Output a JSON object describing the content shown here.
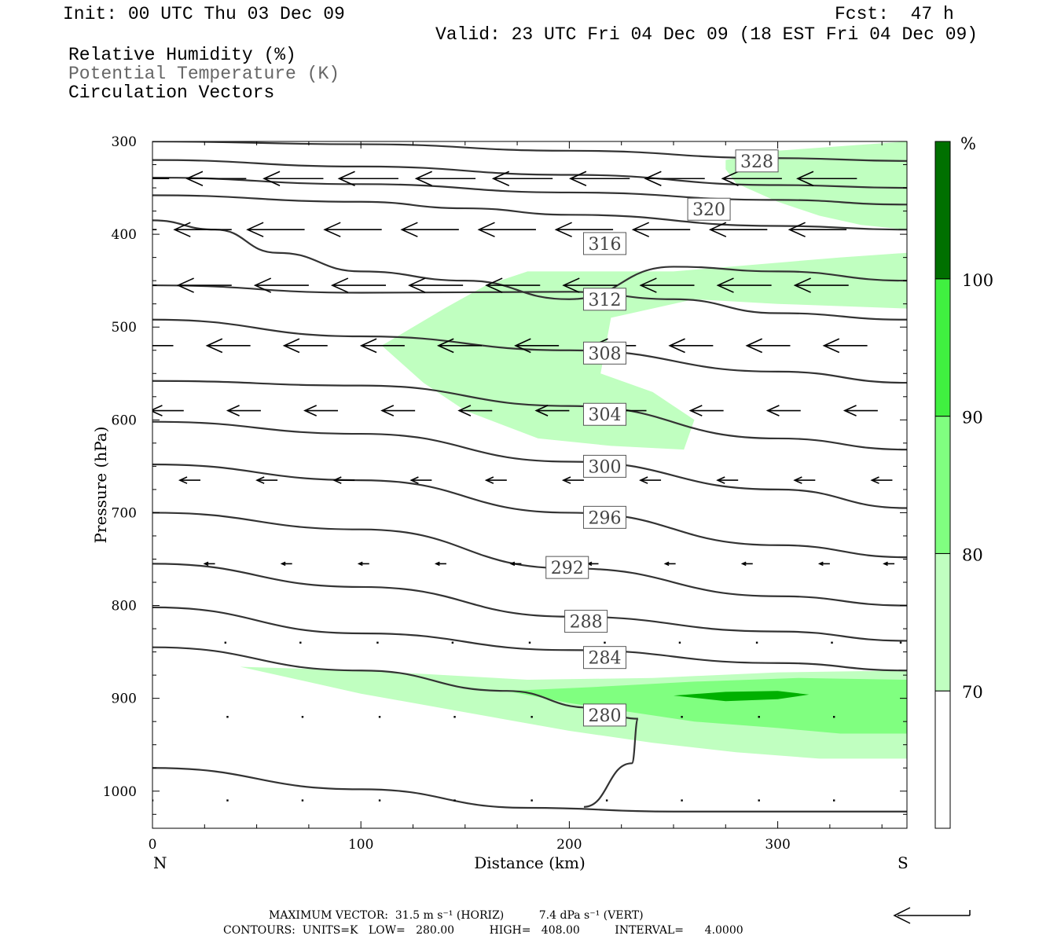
{
  "header": {
    "init": "Init: 00 UTC Thu 03 Dec 09",
    "fcst": "Fcst:  47 h",
    "valid": "Valid: 23 UTC Fri 04 Dec 09 (18 EST Fri 04 Dec 09)",
    "fields": [
      "Relative Humidity (%)",
      "Potential Temperature (K)",
      "Circulation Vectors"
    ]
  },
  "colors": {
    "rh70": "#c0ffc0",
    "rh80": "#80ff80",
    "rh90": "#40f040",
    "rh100": "#00b000",
    "rh_top": "#007000",
    "contour": "#333333",
    "potential_temp_text": "#666666"
  },
  "footer": {
    "max_vector": "MAXIMUM VECTOR:  31.5 m s⁻¹ (HORIZ)          7.4 dPa s⁻¹ (VERT)",
    "contours": "CONTOURS:  UNITS=K   LOW=   280.00          HIGH=   408.00          INTERVAL=      4.0000"
  },
  "chart_data": {
    "type": "contour",
    "xlabel": "Distance (km)",
    "ylabel": "Pressure (hPa)",
    "xlim": [
      0,
      362
    ],
    "ylim": [
      300,
      1040
    ],
    "x_ticks": [
      0,
      100,
      200,
      300
    ],
    "y_ticks": [
      300,
      400,
      500,
      600,
      700,
      800,
      900,
      1000
    ],
    "left_end": "N",
    "right_end": "S",
    "legend_unit": "%",
    "legend_levels": [
      70,
      80,
      90,
      100
    ],
    "theta_contours": [
      {
        "label": "328",
        "label_x": 290,
        "label_p": 321,
        "points": [
          [
            0,
            300
          ],
          [
            100,
            303
          ],
          [
            200,
            310
          ],
          [
            300,
            318
          ],
          [
            362,
            321
          ]
        ]
      },
      {
        "label": "",
        "points": [
          [
            0,
            320
          ],
          [
            100,
            327
          ],
          [
            200,
            336
          ],
          [
            300,
            347
          ],
          [
            362,
            350
          ]
        ]
      },
      {
        "label": "",
        "points": [
          [
            0,
            339
          ],
          [
            100,
            346
          ],
          [
            200,
            355
          ],
          [
            300,
            363
          ],
          [
            362,
            368
          ]
        ]
      },
      {
        "label": "320",
        "label_x": 267,
        "label_p": 373,
        "points": [
          [
            0,
            358
          ],
          [
            100,
            365
          ],
          [
            150,
            372
          ],
          [
            200,
            379
          ],
          [
            300,
            391
          ],
          [
            362,
            395
          ]
        ]
      },
      {
        "label": "316",
        "label_x": 217,
        "label_p": 410,
        "points": [
          [
            0,
            385
          ],
          [
            30,
            395
          ],
          [
            60,
            420
          ],
          [
            100,
            440
          ],
          [
            150,
            450
          ],
          [
            200,
            470
          ],
          [
            250,
            435
          ],
          [
            300,
            440
          ],
          [
            362,
            450
          ]
        ]
      },
      {
        "label": "312",
        "label_x": 217,
        "label_p": 470,
        "points": [
          [
            0,
            455
          ],
          [
            100,
            463
          ],
          [
            200,
            462
          ],
          [
            250,
            470
          ],
          [
            300,
            485
          ],
          [
            362,
            492
          ]
        ]
      },
      {
        "label": "308",
        "label_x": 217,
        "label_p": 528,
        "points": [
          [
            0,
            492
          ],
          [
            100,
            510
          ],
          [
            200,
            525
          ],
          [
            300,
            548
          ],
          [
            362,
            560
          ]
        ]
      },
      {
        "label": "304",
        "label_x": 217,
        "label_p": 594,
        "points": [
          [
            0,
            558
          ],
          [
            100,
            563
          ],
          [
            200,
            585
          ],
          [
            300,
            620
          ],
          [
            362,
            632
          ]
        ]
      },
      {
        "label": "300",
        "label_x": 217,
        "label_p": 650,
        "points": [
          [
            0,
            602
          ],
          [
            100,
            615
          ],
          [
            200,
            645
          ],
          [
            300,
            675
          ],
          [
            362,
            695
          ]
        ]
      },
      {
        "label": "296",
        "label_x": 217,
        "label_p": 705,
        "points": [
          [
            0,
            648
          ],
          [
            100,
            665
          ],
          [
            200,
            700
          ],
          [
            300,
            735
          ],
          [
            362,
            748
          ]
        ]
      },
      {
        "label": "292",
        "label_x": 199,
        "label_p": 759,
        "points": [
          [
            0,
            700
          ],
          [
            100,
            718
          ],
          [
            200,
            760
          ],
          [
            300,
            790
          ],
          [
            362,
            800
          ]
        ]
      },
      {
        "label": "288",
        "label_x": 208,
        "label_p": 817,
        "points": [
          [
            0,
            755
          ],
          [
            100,
            780
          ],
          [
            200,
            812
          ],
          [
            300,
            828
          ],
          [
            362,
            838
          ]
        ]
      },
      {
        "label": "284",
        "label_x": 217,
        "label_p": 856,
        "points": [
          [
            0,
            802
          ],
          [
            100,
            830
          ],
          [
            200,
            848
          ],
          [
            300,
            862
          ],
          [
            362,
            870
          ]
        ]
      },
      {
        "label": "280",
        "label_x": 217,
        "label_p": 918,
        "points": [
          [
            0,
            845
          ],
          [
            100,
            870
          ],
          [
            170,
            892
          ],
          [
            210,
            910
          ],
          [
            233,
            922
          ],
          [
            230,
            970
          ],
          [
            207,
            1017
          ]
        ]
      },
      {
        "label": "",
        "points": [
          [
            0,
            975
          ],
          [
            100,
            998
          ],
          [
            180,
            1018
          ],
          [
            250,
            1022
          ],
          [
            362,
            1022
          ]
        ]
      }
    ],
    "wind_vectors": [
      {
        "p": 340,
        "u": -5.2,
        "xs": [
          8,
          45,
          82,
          118,
          155,
          192,
          229,
          265,
          302,
          338
        ]
      },
      {
        "p": 395,
        "u": -5.0,
        "xs": [
          2,
          38,
          73,
          110,
          147,
          184,
          221,
          258,
          295,
          333
        ]
      },
      {
        "p": 455,
        "u": -4.7,
        "xs": [
          2,
          38,
          75,
          112,
          149,
          186,
          223,
          260,
          297,
          334
        ]
      },
      {
        "p": 520,
        "u": -3.8,
        "xs": [
          10,
          47,
          84,
          121,
          158,
          195,
          232,
          269,
          306,
          343
        ]
      },
      {
        "p": 590,
        "u": -2.9,
        "xs": [
          15,
          52,
          89,
          126,
          163,
          200,
          237,
          274,
          311,
          348
        ]
      },
      {
        "p": 665,
        "u": -1.8,
        "xs": [
          23,
          60,
          97,
          134,
          170,
          207,
          244,
          281,
          318,
          355
        ]
      },
      {
        "p": 755,
        "u": -0.9,
        "xs": [
          30,
          67,
          104,
          141,
          177,
          214,
          251,
          288,
          325,
          356
        ]
      },
      {
        "p": 840,
        "u": -0.15,
        "xs": [
          35,
          71,
          108,
          144,
          181,
          217,
          253,
          290,
          326,
          359
        ]
      },
      {
        "p": 920,
        "u": -0.1,
        "xs": [
          36,
          72,
          109,
          145,
          182,
          218,
          254,
          291,
          327
        ]
      },
      {
        "p": 1010,
        "u": -0.05,
        "xs": [
          0,
          36,
          72,
          109,
          145,
          182,
          218,
          254,
          291,
          327
        ]
      }
    ],
    "rh_shading": [
      {
        "level": 70,
        "points": [
          [
            275,
            320
          ],
          [
            300,
            310
          ],
          [
            362,
            300
          ],
          [
            362,
            395
          ],
          [
            340,
            390
          ],
          [
            320,
            380
          ],
          [
            300,
            365
          ],
          [
            280,
            345
          ],
          [
            275,
            330
          ]
        ]
      },
      {
        "level": 70,
        "points": [
          [
            110,
            520
          ],
          [
            140,
            480
          ],
          [
            160,
            455
          ],
          [
            180,
            440
          ],
          [
            250,
            440
          ],
          [
            330,
            425
          ],
          [
            362,
            420
          ],
          [
            362,
            480
          ],
          [
            300,
            475
          ],
          [
            260,
            470
          ],
          [
            220,
            490
          ],
          [
            215,
            550
          ],
          [
            240,
            570
          ],
          [
            260,
            600
          ],
          [
            255,
            632
          ],
          [
            220,
            628
          ],
          [
            185,
            620
          ],
          [
            150,
            590
          ],
          [
            130,
            560
          ],
          [
            110,
            520
          ]
        ]
      },
      {
        "level": 70,
        "points": [
          [
            42,
            866
          ],
          [
            100,
            870
          ],
          [
            180,
            880
          ],
          [
            240,
            878
          ],
          [
            300,
            872
          ],
          [
            362,
            870
          ],
          [
            362,
            965
          ],
          [
            320,
            965
          ],
          [
            280,
            958
          ],
          [
            240,
            948
          ],
          [
            200,
            935
          ],
          [
            150,
            915
          ],
          [
            100,
            895
          ],
          [
            42,
            866
          ]
        ]
      },
      {
        "level": 80,
        "points": [
          [
            170,
            892
          ],
          [
            210,
            888
          ],
          [
            260,
            882
          ],
          [
            310,
            878
          ],
          [
            362,
            880
          ],
          [
            362,
            938
          ],
          [
            330,
            938
          ],
          [
            300,
            932
          ],
          [
            260,
            925
          ],
          [
            230,
            915
          ],
          [
            200,
            905
          ],
          [
            170,
            892
          ]
        ]
      },
      {
        "level": 90,
        "points": [
          [
            250,
            897
          ],
          [
            275,
            893
          ],
          [
            300,
            892
          ],
          [
            315,
            896
          ],
          [
            300,
            901
          ],
          [
            275,
            903
          ]
        ]
      }
    ]
  }
}
